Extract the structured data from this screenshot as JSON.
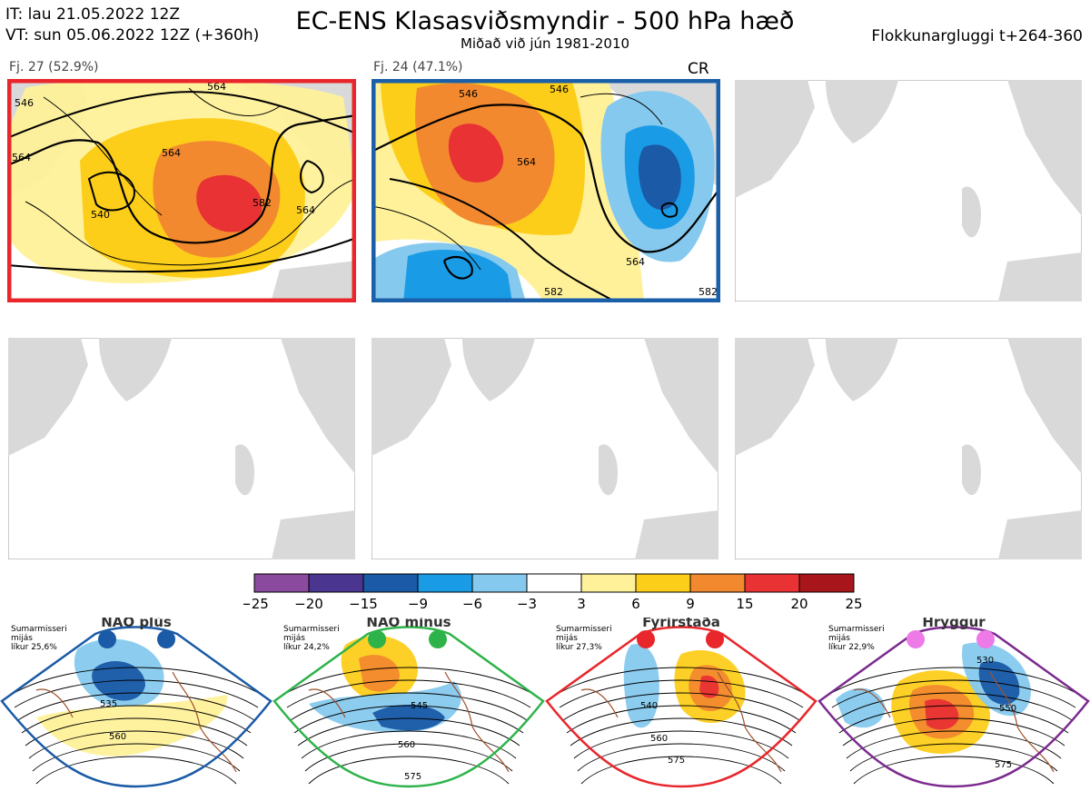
{
  "header": {
    "it_line": "IT: lau 21.05.2022 12Z",
    "vt_line": "VT: sun 05.06.2022 12Z  (+360h)",
    "title": "EC-ENS Klasasviðsmyndir - 500 hPa hæð",
    "subtitle": "Miðað við jún 1981-2010",
    "window": "Flokkunargluggi t+264-360"
  },
  "panels": [
    {
      "label": "Fj. 27 (52.9%)",
      "border": "#e8262b",
      "contours": [
        "546",
        "564",
        "564",
        "540",
        "564",
        "582",
        "564"
      ]
    },
    {
      "label": "Fj. 24 (47.1%)",
      "border": "#1a5fa8",
      "tag": "CR",
      "contours": [
        "546",
        "546",
        "564",
        "564",
        "582",
        "582"
      ]
    }
  ],
  "colorbar": {
    "ticks": [
      "−25",
      "−20",
      "−15",
      "−9",
      "−6",
      "−3",
      "3",
      "6",
      "9",
      "15",
      "20",
      "25"
    ],
    "colors": [
      "#8a4a9e",
      "#4a3590",
      "#1a5aa6",
      "#1a9be6",
      "#86c9ee",
      "#ffffff",
      "#fff19a",
      "#fcce1a",
      "#f2892e",
      "#e83234",
      "#a8161c"
    ]
  },
  "regimes": [
    {
      "name": "NAO plús",
      "season": "Sumarmisseri",
      "avg": "mijás",
      "prob": "líkur 25,6%",
      "color": "#1a5aa6",
      "border": "#1a5aa6",
      "labels": [
        "535",
        "560"
      ]
    },
    {
      "name": "NAO mínus",
      "season": "Sumarmisseri",
      "avg": "mijás",
      "prob": "líkur 24,2%",
      "color": "#2eb34a",
      "border": "#2eb34a",
      "labels": [
        "545",
        "560",
        "575"
      ]
    },
    {
      "name": "Fyrirstaða",
      "season": "Sumarmisseri",
      "avg": "mijás",
      "prob": "líkur 27,3%",
      "color": "#e8262b",
      "border": "#e8262b",
      "labels": [
        "540",
        "560",
        "575"
      ]
    },
    {
      "name": "Hryggur",
      "season": "Sumarmisseri",
      "avg": "mijás",
      "prob": "líkur 22,9%",
      "color": "#ee7ae8",
      "border": "#7b2a8e",
      "labels": [
        "530",
        "550",
        "575"
      ]
    }
  ]
}
